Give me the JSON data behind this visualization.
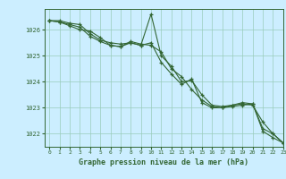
{
  "title": "Graphe pression niveau de la mer (hPa)",
  "background_color": "#cceeff",
  "plot_bg_color": "#cceeff",
  "grid_color": "#99ccbb",
  "line_color": "#336633",
  "xlim": [
    -0.5,
    23
  ],
  "ylim": [
    1021.5,
    1026.8
  ],
  "yticks": [
    1022,
    1023,
    1024,
    1025,
    1026
  ],
  "xticks": [
    0,
    1,
    2,
    3,
    4,
    5,
    6,
    7,
    8,
    9,
    10,
    11,
    12,
    13,
    14,
    15,
    16,
    17,
    18,
    19,
    20,
    21,
    22,
    23
  ],
  "series": [
    [
      1026.35,
      1026.35,
      1026.25,
      1026.2,
      1025.85,
      1025.6,
      1025.5,
      1025.45,
      1025.5,
      1025.4,
      1026.6,
      1025.0,
      1024.6,
      1024.0,
      1024.05,
      1023.5,
      1023.1,
      1023.05,
      1023.1,
      1023.2,
      1023.15,
      1022.1,
      1021.85,
      1021.65
    ],
    [
      1026.35,
      1026.3,
      1026.2,
      1026.1,
      1025.75,
      1025.55,
      1025.4,
      1025.35,
      1025.55,
      1025.45,
      1025.4,
      1025.15,
      1024.5,
      1024.2,
      1023.7,
      1023.3,
      1023.05,
      1023.0,
      1023.05,
      1023.1,
      1023.15,
      1022.2,
      1022.0,
      1021.65
    ],
    [
      1026.35,
      1026.3,
      1026.15,
      1026.0,
      1025.95,
      1025.7,
      1025.4,
      1025.35,
      1025.5,
      1025.4,
      1025.5,
      1024.75,
      1024.3,
      1023.9,
      1024.1,
      1023.2,
      1023.0,
      1023.0,
      1023.1,
      1023.15,
      1023.1,
      1022.45,
      1022.0,
      1021.65
    ]
  ]
}
